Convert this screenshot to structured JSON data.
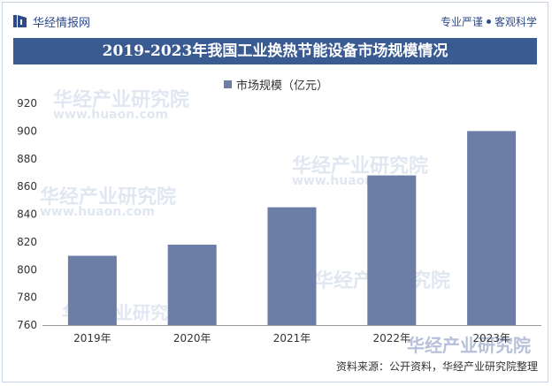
{
  "header": {
    "brand_name": "华经情报网",
    "tagline_left": "专业严谨",
    "tagline_right": "客观科学"
  },
  "chart_data": {
    "type": "bar",
    "title": "2019-2023年我国工业换热节能设备市场规模情况",
    "categories": [
      "2019年",
      "2020年",
      "2021年",
      "2022年",
      "2023年"
    ],
    "series": [
      {
        "name": "市场规模（亿元）",
        "values": [
          810,
          818,
          845,
          868,
          900
        ]
      }
    ],
    "ylim": [
      760,
      920
    ],
    "yticks": [
      760,
      780,
      800,
      820,
      840,
      860,
      880,
      900,
      920
    ],
    "xlabel": "",
    "ylabel": "",
    "legend_position": "top-center",
    "grid": false,
    "bar_color": "#6c7ea5"
  },
  "source": "资料来源：公开资料，华经产业研究院整理",
  "watermark": {
    "text_cn": "华经产业研究院",
    "text_en": "www.huaon.com"
  },
  "colors": {
    "title_bg": "#3a5a92",
    "brand": "#2d4a8a"
  }
}
